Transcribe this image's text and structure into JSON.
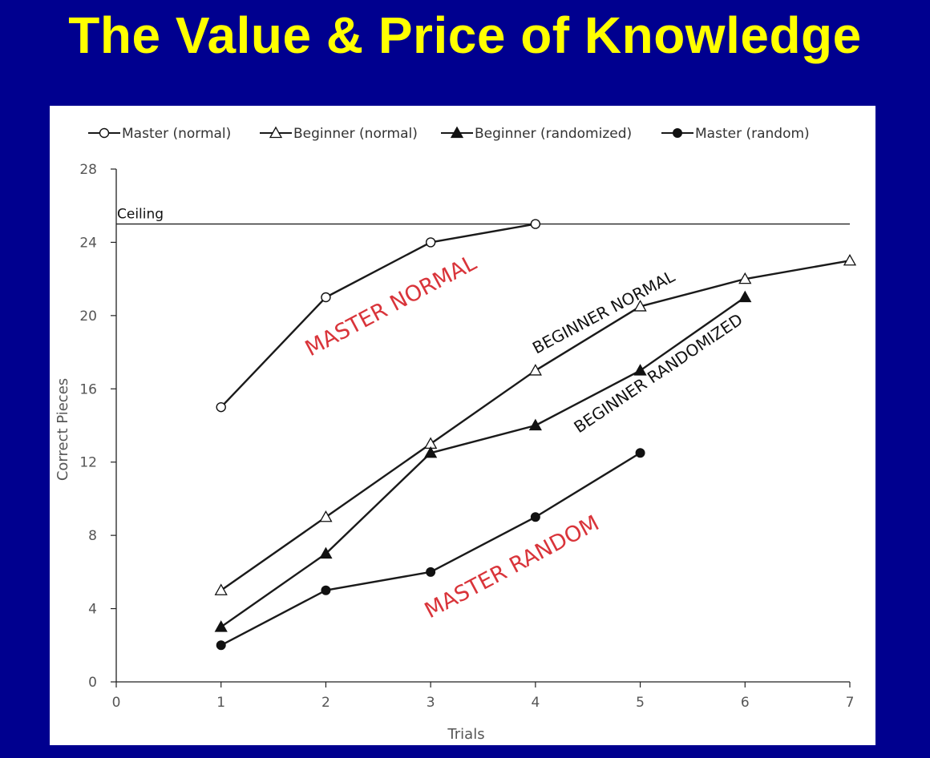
{
  "title": "The Value & Price of Knowledge",
  "chart_data": {
    "type": "line",
    "xlabel": "Trials",
    "ylabel": "Correct Pieces",
    "xlim": [
      0,
      7
    ],
    "ylim": [
      0,
      28
    ],
    "xticks": [
      0,
      1,
      2,
      3,
      4,
      5,
      6,
      7
    ],
    "yticks": [
      0,
      4,
      8,
      12,
      16,
      20,
      24,
      28
    ],
    "legend_position": "top",
    "grid": false,
    "ceiling": {
      "label": "Ceiling",
      "value": 25
    },
    "series": [
      {
        "name": "Master (normal)",
        "marker": "open-circle",
        "x": [
          1,
          2,
          3,
          4
        ],
        "y": [
          15,
          21,
          24,
          25
        ]
      },
      {
        "name": "Beginner (normal)",
        "marker": "open-triangle",
        "x": [
          1,
          2,
          3,
          4,
          5,
          6,
          7
        ],
        "y": [
          5,
          9,
          13,
          17,
          20.5,
          22,
          23
        ]
      },
      {
        "name": "Beginner (randomized)",
        "marker": "filled-triangle",
        "x": [
          1,
          2,
          3,
          4,
          5,
          6
        ],
        "y": [
          3,
          7,
          12.5,
          14,
          17,
          21
        ]
      },
      {
        "name": "Master (random)",
        "marker": "filled-circle",
        "x": [
          1,
          2,
          3,
          4,
          5
        ],
        "y": [
          2,
          5,
          6,
          9,
          12.5
        ]
      }
    ],
    "annotations": [
      {
        "text": "MASTER NORMAL",
        "color": "#d9343a"
      },
      {
        "text": "BEGINNER NORMAL",
        "color": "#111111"
      },
      {
        "text": "BEGINNER RANDOMIZED",
        "color": "#111111"
      },
      {
        "text": "MASTER RANDOM",
        "color": "#d9343a"
      }
    ]
  }
}
